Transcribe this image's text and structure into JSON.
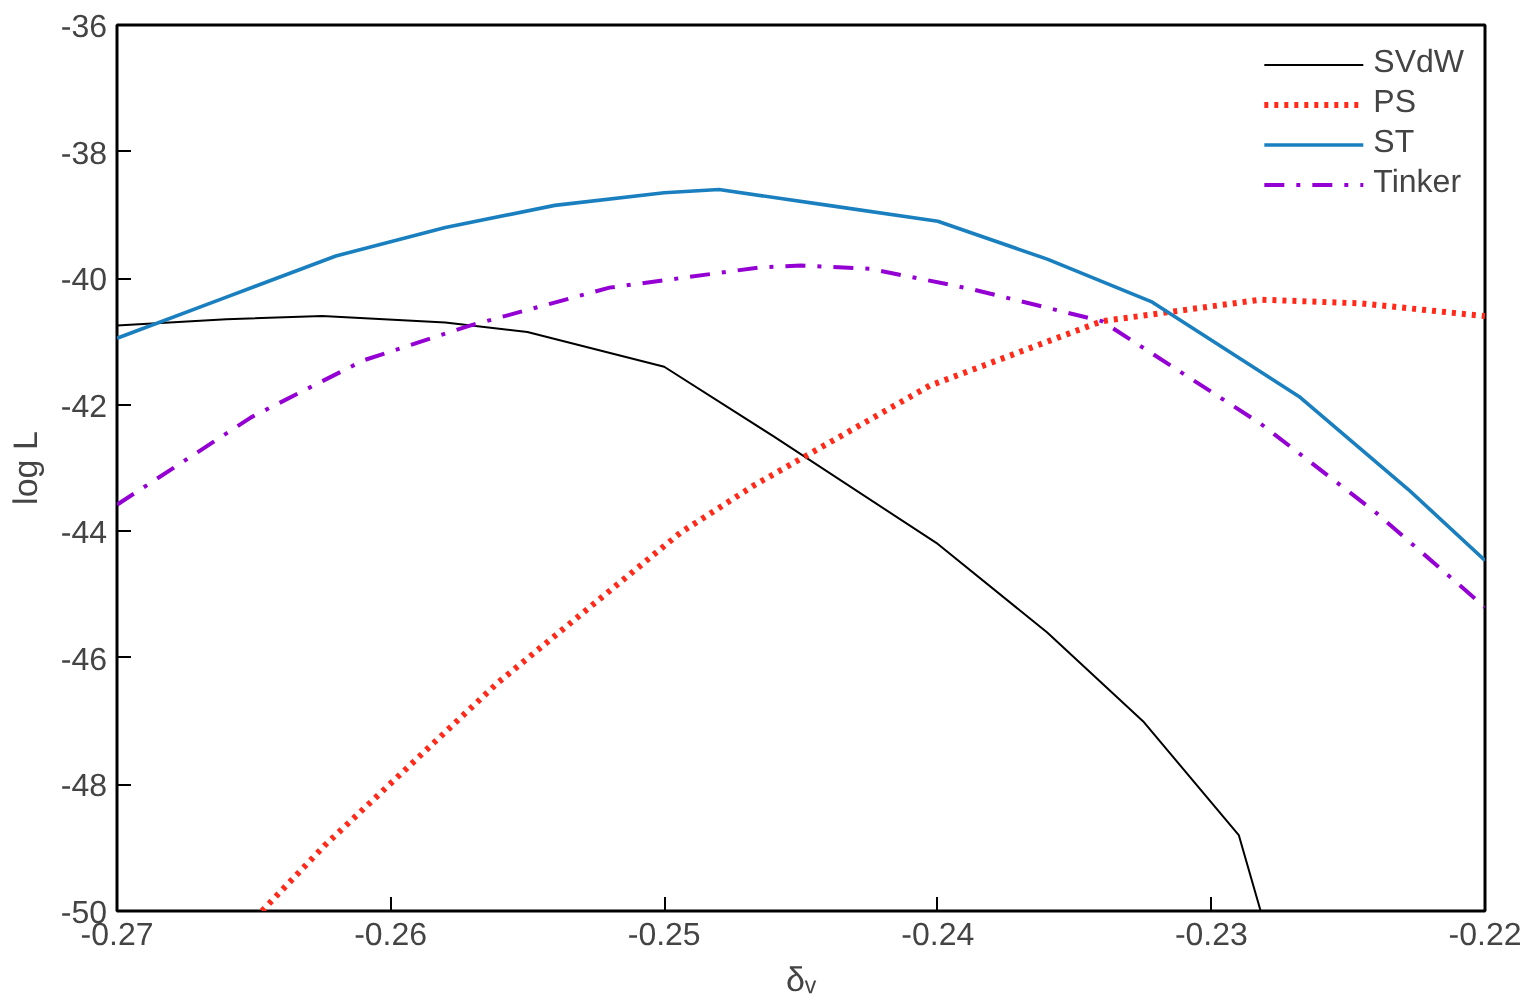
{
  "chart_data": {
    "type": "line",
    "xlabel": "δᵥ",
    "ylabel": "log L",
    "xlim": [
      -0.27,
      -0.22
    ],
    "ylim": [
      -50,
      -36
    ],
    "xticks": [
      -0.27,
      -0.26,
      -0.25,
      -0.24,
      -0.23,
      -0.22
    ],
    "yticks": [
      -50,
      -48,
      -46,
      -44,
      -42,
      -40,
      -38,
      -36
    ],
    "grid": false,
    "legend": "top right",
    "series": [
      {
        "name": "SVdW",
        "color": "#000000",
        "line_style": "solid",
        "x": [
          -0.27,
          -0.266,
          -0.2625,
          -0.258,
          -0.255,
          -0.25,
          -0.246,
          -0.24,
          -0.236,
          -0.2325,
          -0.229,
          -0.2282
        ],
        "values": [
          -40.75,
          -40.65,
          -40.6,
          -40.7,
          -40.85,
          -41.4,
          -42.5,
          -44.2,
          -45.6,
          -47.0,
          -48.8,
          -50
        ]
      },
      {
        "name": "PS",
        "color": "#ff2a1a",
        "line_style": "dotted",
        "x": [
          -0.2647,
          -0.2624,
          -0.2561,
          -0.2494,
          -0.2467,
          -0.2403,
          -0.234,
          -0.2282,
          -0.2245,
          -0.22
        ],
        "values": [
          -50,
          -48.96,
          -46.4,
          -44.02,
          -43.27,
          -41.7,
          -40.68,
          -40.34,
          -40.4,
          -40.6
        ]
      },
      {
        "name": "ST",
        "color": "#1a7fbf",
        "line_style": "solid",
        "x": [
          -0.27,
          -0.266,
          -0.262,
          -0.258,
          -0.254,
          -0.25,
          -0.248,
          -0.244,
          -0.24,
          -0.236,
          -0.2322,
          -0.2268,
          -0.2228,
          -0.22
        ],
        "values": [
          -40.95,
          -40.3,
          -39.65,
          -39.2,
          -38.85,
          -38.65,
          -38.6,
          -38.85,
          -39.1,
          -39.7,
          -40.37,
          -41.87,
          -43.34,
          -44.46
        ]
      },
      {
        "name": "Tinker",
        "color": "#9400d3",
        "line_style": "dashdot",
        "x": [
          -0.27,
          -0.2651,
          -0.261,
          -0.2571,
          -0.252,
          -0.2465,
          -0.245,
          -0.2425,
          -0.2388,
          -0.234,
          -0.2282,
          -0.224,
          -0.22
        ],
        "values": [
          -43.58,
          -42.2,
          -41.3,
          -40.75,
          -40.15,
          -39.83,
          -39.8,
          -39.85,
          -40.17,
          -40.68,
          -42.3,
          -43.7,
          -45.2
        ]
      }
    ]
  }
}
